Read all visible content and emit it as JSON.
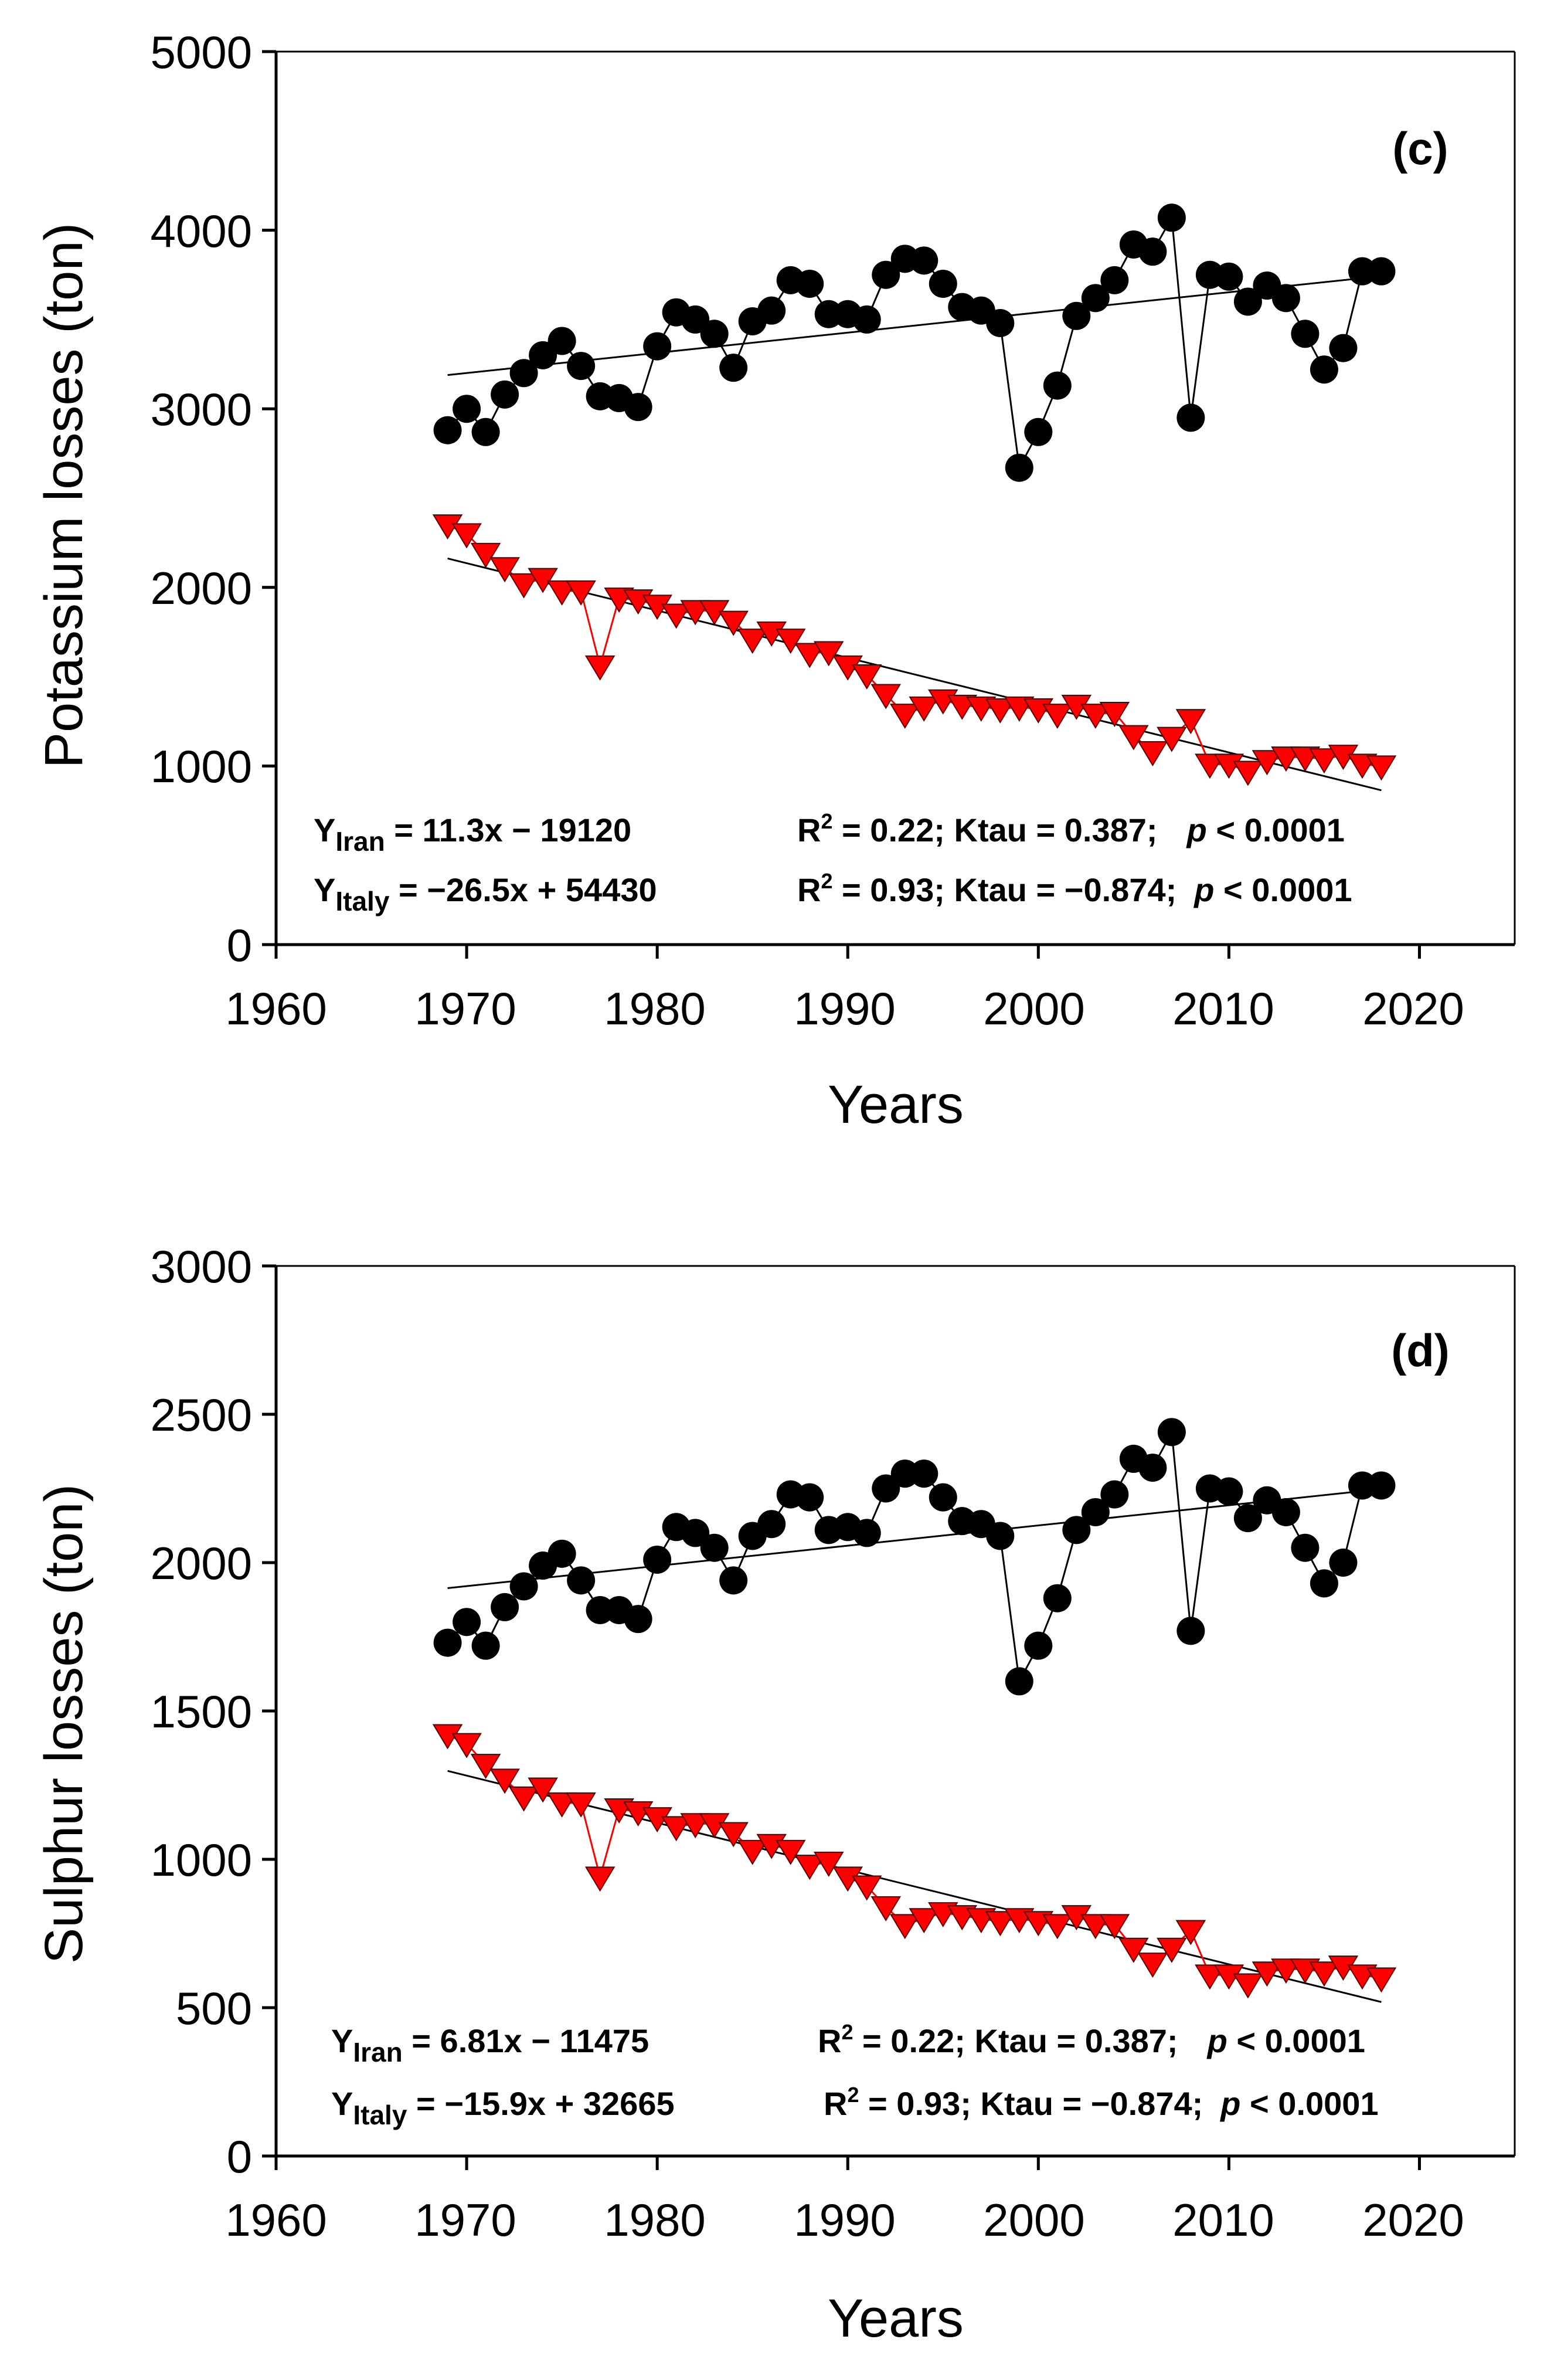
{
  "colors": {
    "iran": "#000000",
    "italy": "#ff0000",
    "italy_edge": "#550000",
    "axis": "#000000"
  },
  "chart_data": [
    {
      "type": "scatter",
      "panel_label": "(c)",
      "xlabel": "Years",
      "ylabel": "Potassium losses (ton)",
      "xlim": [
        1960,
        2025
      ],
      "ylim": [
        0,
        5000
      ],
      "xticks": [
        1960,
        1970,
        1980,
        1990,
        2000,
        2010,
        2020
      ],
      "yticks": [
        0,
        1000,
        2000,
        3000,
        4000,
        5000
      ],
      "x": [
        1969,
        1970,
        1971,
        1972,
        1973,
        1974,
        1975,
        1976,
        1977,
        1978,
        1979,
        1980,
        1981,
        1982,
        1983,
        1984,
        1985,
        1986,
        1987,
        1988,
        1989,
        1990,
        1991,
        1992,
        1993,
        1994,
        1995,
        1996,
        1997,
        1998,
        1999,
        2000,
        2001,
        2002,
        2003,
        2004,
        2005,
        2006,
        2007,
        2008,
        2009,
        2010,
        2011,
        2012,
        2013,
        2014,
        2015,
        2016,
        2017,
        2018
      ],
      "series": [
        {
          "name": "Iran",
          "marker": "circle",
          "values": [
            2880,
            3000,
            2870,
            3080,
            3200,
            3300,
            3380,
            3240,
            3070,
            3060,
            3010,
            3350,
            3540,
            3500,
            3420,
            3230,
            3490,
            3550,
            3720,
            3700,
            3530,
            3530,
            3500,
            3750,
            3840,
            3830,
            3700,
            3570,
            3550,
            3480,
            2670,
            2870,
            3130,
            3520,
            3620,
            3720,
            3920,
            3880,
            4070,
            2950,
            3750,
            3740,
            3600,
            3690,
            3620,
            3420,
            3220,
            3340,
            3770,
            3770
          ],
          "trend": {
            "from": [
              1969,
              3189
            ],
            "to": [
              2018,
              3743
            ]
          }
        },
        {
          "name": "Italy",
          "marker": "triangle-down",
          "values": [
            2350,
            2300,
            2190,
            2110,
            2020,
            2050,
            1980,
            1980,
            1560,
            1940,
            1930,
            1900,
            1850,
            1870,
            1870,
            1810,
            1710,
            1750,
            1710,
            1630,
            1640,
            1560,
            1510,
            1400,
            1290,
            1330,
            1370,
            1340,
            1330,
            1320,
            1330,
            1320,
            1290,
            1340,
            1290,
            1300,
            1170,
            1080,
            1160,
            1260,
            1010,
            1010,
            970,
            1030,
            1050,
            1050,
            1040,
            1060,
            1010,
            1000
          ],
          "trend": {
            "from": [
              1969,
              2162
            ],
            "to": [
              2018,
              864
            ]
          }
        }
      ],
      "equations": {
        "iran": {
          "y_label": "Y",
          "y_sub": "Iran",
          "rhs": " = 11.3x − 19120",
          "stats_prefix": "R",
          "stats_sup": "2",
          "stats_mid": " = 0.22; Ktau = 0.387;",
          "p_symbol": "p",
          "p_rest": " < 0.0001"
        },
        "italy": {
          "y_label": "Y",
          "y_sub": "Italy",
          "rhs": " = −26.5x + 54430",
          "stats_prefix": "R",
          "stats_sup": "2",
          "stats_mid": " = 0.93; Ktau = −0.874;",
          "p_symbol": "p",
          "p_rest": " < 0.0001"
        }
      }
    },
    {
      "type": "scatter",
      "panel_label": "(d)",
      "xlabel": "Years",
      "ylabel": "Sulphur losses (ton)",
      "xlim": [
        1960,
        2025
      ],
      "ylim": [
        0,
        3000
      ],
      "xticks": [
        1960,
        1970,
        1980,
        1990,
        2000,
        2010,
        2020
      ],
      "yticks": [
        0,
        500,
        1000,
        1500,
        2000,
        2500,
        3000
      ],
      "x": [
        1969,
        1970,
        1971,
        1972,
        1973,
        1974,
        1975,
        1976,
        1977,
        1978,
        1979,
        1980,
        1981,
        1982,
        1983,
        1984,
        1985,
        1986,
        1987,
        1988,
        1989,
        1990,
        1991,
        1992,
        1993,
        1994,
        1995,
        1996,
        1997,
        1998,
        1999,
        2000,
        2001,
        2002,
        2003,
        2004,
        2005,
        2006,
        2007,
        2008,
        2009,
        2010,
        2011,
        2012,
        2013,
        2014,
        2015,
        2016,
        2017,
        2018
      ],
      "series": [
        {
          "name": "Iran",
          "marker": "circle",
          "values": [
            1730,
            1800,
            1720,
            1850,
            1920,
            1990,
            2030,
            1940,
            1840,
            1840,
            1810,
            2010,
            2120,
            2100,
            2050,
            1940,
            2090,
            2130,
            2230,
            2220,
            2110,
            2120,
            2100,
            2250,
            2300,
            2300,
            2220,
            2140,
            2130,
            2090,
            1600,
            1720,
            1880,
            2110,
            2170,
            2230,
            2350,
            2320,
            2440,
            1770,
            2250,
            2240,
            2150,
            2210,
            2170,
            2050,
            1930,
            2000,
            2260,
            2260
          ],
          "trend": {
            "from": [
              1969,
              1914
            ],
            "to": [
              2018,
              2248
            ]
          }
        },
        {
          "name": "Italy",
          "marker": "triangle-down",
          "values": [
            1420,
            1390,
            1320,
            1270,
            1210,
            1240,
            1190,
            1190,
            940,
            1170,
            1160,
            1140,
            1110,
            1120,
            1120,
            1090,
            1030,
            1050,
            1030,
            980,
            990,
            940,
            910,
            840,
            780,
            800,
            820,
            810,
            800,
            790,
            800,
            790,
            780,
            810,
            780,
            780,
            700,
            650,
            700,
            760,
            610,
            610,
            580,
            620,
            630,
            630,
            620,
            640,
            610,
            600
          ],
          "trend": {
            "from": [
              1969,
              1298
            ],
            "to": [
              2018,
              519
            ]
          }
        }
      ],
      "equations": {
        "iran": {
          "y_label": "Y",
          "y_sub": "Iran",
          "rhs": " = 6.81x − 11475",
          "stats_prefix": "R",
          "stats_sup": "2",
          "stats_mid": " = 0.22; Ktau = 0.387;",
          "p_symbol": "p",
          "p_rest": " < 0.0001"
        },
        "italy": {
          "y_label": "Y",
          "y_sub": "Italy",
          "rhs": " = −15.9x + 32665",
          "stats_prefix": "R",
          "stats_sup": "2",
          "stats_mid": " = 0.93; Ktau = −0.874;",
          "p_symbol": "p",
          "p_rest": " < 0.0001"
        }
      }
    }
  ]
}
